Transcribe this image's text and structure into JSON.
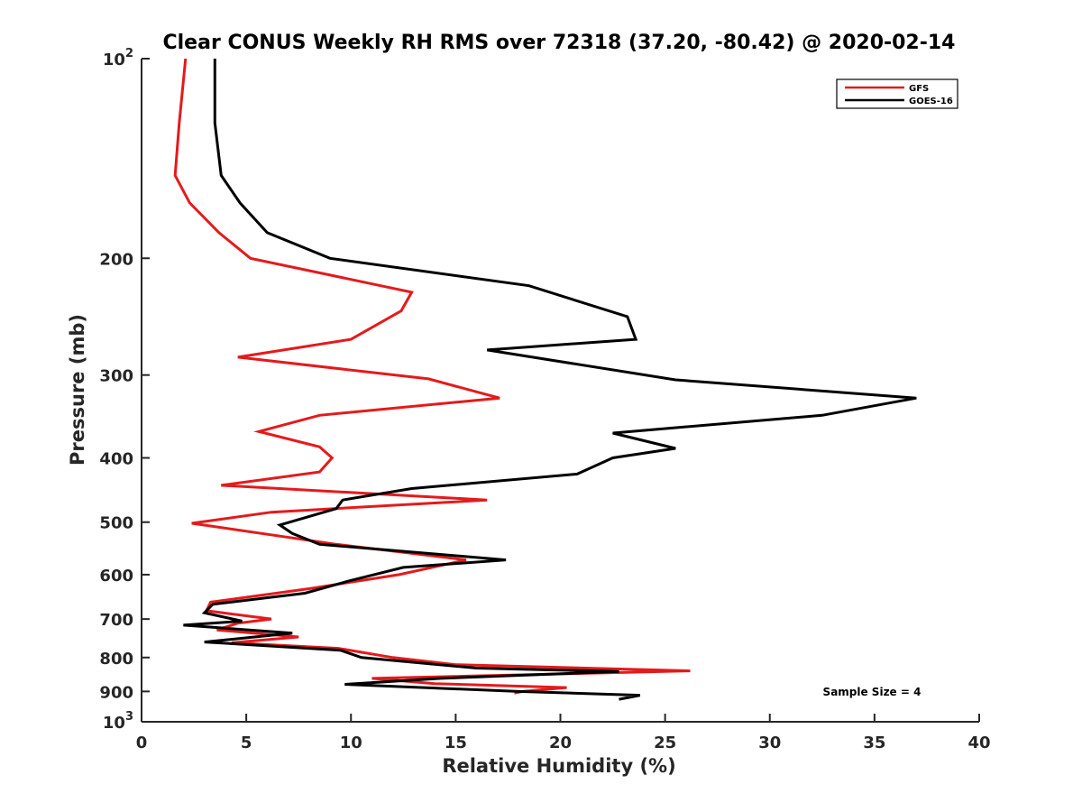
{
  "chart_data": {
    "type": "line",
    "title": "Clear CONUS Weekly RH RMS over 72318 (37.20, -80.42) @ 2020-02-14",
    "xlabel": "Relative Humidity (%)",
    "ylabel": "Pressure (mb)",
    "xlim": [
      0,
      40
    ],
    "ylim": [
      100,
      1000
    ],
    "yscale": "log",
    "y_reversed": true,
    "grid": false,
    "x_ticks": [
      0,
      5,
      10,
      15,
      20,
      25,
      30,
      35,
      40
    ],
    "x_tick_labels": [
      "0",
      "5",
      "10",
      "15",
      "20",
      "25",
      "30",
      "35",
      "40"
    ],
    "y_ticks": [
      100,
      200,
      300,
      400,
      500,
      600,
      700,
      800,
      900,
      1000
    ],
    "y_tick_labels": [
      {
        "base": "10",
        "exp": "2"
      },
      {
        "base": "200",
        "exp": ""
      },
      {
        "base": "300",
        "exp": ""
      },
      {
        "base": "400",
        "exp": ""
      },
      {
        "base": "500",
        "exp": ""
      },
      {
        "base": "600",
        "exp": ""
      },
      {
        "base": "700",
        "exp": ""
      },
      {
        "base": "800",
        "exp": ""
      },
      {
        "base": "900",
        "exp": ""
      },
      {
        "base": "10",
        "exp": "3"
      }
    ],
    "legend_position": "top-right",
    "annotation": "Sample Size = 4",
    "series": [
      {
        "name": "GFS",
        "color": "#e41a1c",
        "points": [
          [
            2.1,
            100
          ],
          [
            1.8,
            125
          ],
          [
            1.6,
            150
          ],
          [
            2.3,
            165
          ],
          [
            3.7,
            183
          ],
          [
            5.2,
            200
          ],
          [
            12.9,
            225
          ],
          [
            12.4,
            240
          ],
          [
            10.0,
            265
          ],
          [
            4.6,
            282
          ],
          [
            13.7,
            304
          ],
          [
            17.1,
            325
          ],
          [
            8.5,
            345
          ],
          [
            5.6,
            365
          ],
          [
            8.5,
            385
          ],
          [
            9.1,
            400
          ],
          [
            8.5,
            420
          ],
          [
            3.8,
            440
          ],
          [
            16.5,
            463
          ],
          [
            6.2,
            483
          ],
          [
            2.4,
            502
          ],
          [
            9.3,
            540
          ],
          [
            15.5,
            570
          ],
          [
            12.3,
            600
          ],
          [
            8.0,
            630
          ],
          [
            3.3,
            660
          ],
          [
            3.1,
            680
          ],
          [
            6.2,
            700
          ],
          [
            4.6,
            710
          ],
          [
            3.6,
            727
          ],
          [
            7.5,
            745
          ],
          [
            4.3,
            760
          ],
          [
            9.4,
            775
          ],
          [
            12.0,
            800
          ],
          [
            15.0,
            820
          ],
          [
            26.2,
            838
          ],
          [
            11.0,
            860
          ],
          [
            14.0,
            876
          ],
          [
            20.3,
            888
          ],
          [
            18.2,
            900
          ],
          [
            17.8,
            905
          ]
        ]
      },
      {
        "name": "GOES-16",
        "color": "#000000",
        "points": [
          [
            3.5,
            100
          ],
          [
            3.5,
            125
          ],
          [
            3.8,
            150
          ],
          [
            4.7,
            165
          ],
          [
            6.0,
            183
          ],
          [
            9.0,
            200
          ],
          [
            18.5,
            220
          ],
          [
            23.2,
            245
          ],
          [
            23.6,
            265
          ],
          [
            16.5,
            275
          ],
          [
            25.5,
            305
          ],
          [
            37.0,
            325
          ],
          [
            32.5,
            345
          ],
          [
            22.5,
            367
          ],
          [
            25.5,
            387
          ],
          [
            22.5,
            400
          ],
          [
            20.8,
            423
          ],
          [
            12.9,
            445
          ],
          [
            9.6,
            463
          ],
          [
            9.3,
            477
          ],
          [
            6.6,
            505
          ],
          [
            7.2,
            520
          ],
          [
            8.5,
            540
          ],
          [
            17.4,
            570
          ],
          [
            12.5,
            585
          ],
          [
            10.0,
            612
          ],
          [
            7.8,
            640
          ],
          [
            3.4,
            665
          ],
          [
            3.0,
            685
          ],
          [
            4.8,
            705
          ],
          [
            2.0,
            715
          ],
          [
            7.2,
            735
          ],
          [
            3.0,
            758
          ],
          [
            9.5,
            780
          ],
          [
            10.5,
            800
          ],
          [
            16.0,
            830
          ],
          [
            22.8,
            840
          ],
          [
            14.3,
            860
          ],
          [
            9.7,
            878
          ],
          [
            18.0,
            900
          ],
          [
            23.8,
            912
          ],
          [
            22.8,
            925
          ]
        ]
      }
    ]
  }
}
